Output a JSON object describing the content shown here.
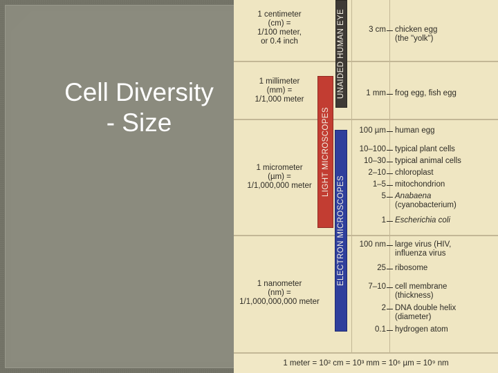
{
  "slide": {
    "title_line1": "Cell Diversity",
    "title_line2": "- Size"
  },
  "units": [
    {
      "lines": [
        "1 centimeter",
        "(cm) =",
        "1/100 meter,",
        "or 0.4 inch"
      ]
    },
    {
      "lines": [
        "1 millimeter",
        "(mm) =",
        "1/1,000 meter"
      ]
    },
    {
      "lines": [
        "1 micrometer",
        "(µm) =",
        "1/1,000,000 meter"
      ]
    },
    {
      "lines": [
        "1 nanometer",
        "(nm) =",
        "1/1,000,000,000 meter"
      ]
    }
  ],
  "bars": {
    "eye": "UNAIDED HUMAN EYE",
    "light": "LIGHT MICROSCOPES",
    "electron": "ELECTRON MICROSCOPES"
  },
  "scale": [
    {
      "size": "3 cm",
      "lines": [
        "chicken egg",
        "(the \"yolk\")"
      ]
    },
    {
      "size": "1 mm",
      "lines": [
        "frog egg, fish egg"
      ]
    },
    {
      "size": "100 µm",
      "lines": [
        "human egg"
      ]
    },
    {
      "size": "10–100",
      "lines": [
        "typical plant cells"
      ]
    },
    {
      "size": "10–30",
      "lines": [
        "typical animal cells"
      ]
    },
    {
      "size": "2–10",
      "lines": [
        "chloroplast"
      ]
    },
    {
      "size": "1–5",
      "lines": [
        "mitochondrion"
      ]
    },
    {
      "size": "5",
      "lines": [
        "Anabaena",
        "(cyanobacterium)"
      ]
    },
    {
      "size": "1",
      "lines": [
        "Escherichia coli"
      ]
    },
    {
      "size": "100 nm",
      "lines": [
        "large virus (HIV,",
        "influenza virus"
      ]
    },
    {
      "size": "25",
      "lines": [
        "ribosome"
      ]
    },
    {
      "size": "7–10",
      "lines": [
        "cell membrane",
        "(thickness)"
      ]
    },
    {
      "size": "2",
      "lines": [
        "DNA double helix",
        "(diameter)"
      ]
    },
    {
      "size": "0.1",
      "lines": [
        "hydrogen atom"
      ]
    }
  ],
  "footer": "1 meter = 10² cm = 10³ mm = 10⁶ µm = 10⁹ nm"
}
